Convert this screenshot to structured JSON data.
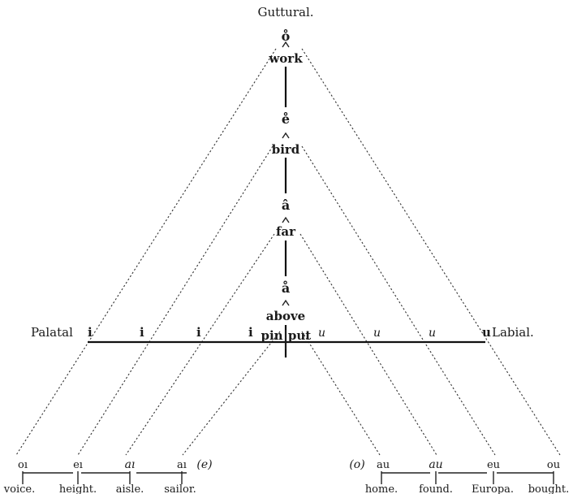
{
  "title": "Guttural.",
  "left_label": "Palatal",
  "right_label": "Labial.",
  "vertical_axis": [
    {
      "symbol": "o̊",
      "word": "work"
    },
    {
      "symbol": "e̊",
      "word": "bird"
    },
    {
      "symbol": "â",
      "word": "far"
    },
    {
      "symbol": "å",
      "word": "above"
    }
  ],
  "horizontal_axis": {
    "left_marks": [
      "i",
      "i",
      "i",
      "i"
    ],
    "right_marks": [
      "u",
      "u",
      "u",
      "u"
    ],
    "center_words": [
      "pin",
      "put"
    ]
  },
  "bottom_left": [
    {
      "symbol": "oı",
      "word": "voice."
    },
    {
      "symbol": "eı",
      "word": "height."
    },
    {
      "symbol": "aı",
      "word": "aisle."
    },
    {
      "symbol": "aı",
      "word": "sailor."
    }
  ],
  "bottom_left_paren": "(e)",
  "bottom_right_paren": "(o)",
  "bottom_right": [
    {
      "symbol": "au",
      "word": "home."
    },
    {
      "symbol": "au",
      "word": "found."
    },
    {
      "symbol": "eu",
      "word": "Europa."
    },
    {
      "symbol": "ou",
      "word": "bought."
    }
  ]
}
